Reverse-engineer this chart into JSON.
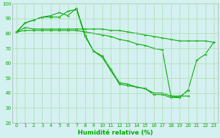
{
  "lines": [
    {
      "x": [
        0,
        1,
        2,
        3,
        4,
        5,
        6,
        7,
        8,
        9,
        10,
        11,
        12,
        13,
        14,
        15,
        16,
        17,
        18,
        19,
        20,
        21,
        22,
        23
      ],
      "y": [
        81,
        84,
        83,
        83,
        83,
        83,
        83,
        83,
        83,
        83,
        83,
        82,
        82,
        81,
        80,
        79,
        78,
        77,
        76,
        75,
        75,
        75,
        75,
        74
      ]
    },
    {
      "x": [
        0,
        1,
        2,
        3,
        4,
        5,
        6,
        7,
        8,
        9,
        10,
        11,
        12,
        13,
        14,
        15,
        16,
        17,
        18,
        19,
        20,
        21,
        22,
        23
      ],
      "y": [
        81,
        87,
        89,
        91,
        92,
        94,
        92,
        97,
        79,
        68,
        65,
        56,
        47,
        46,
        44,
        43,
        40,
        40,
        38,
        37,
        42,
        62,
        66,
        74
      ]
    },
    {
      "x": [
        0,
        1,
        2,
        3,
        4,
        5,
        6,
        7,
        8,
        9,
        10,
        11,
        12,
        13,
        14,
        15,
        16,
        17,
        18,
        19,
        20
      ],
      "y": [
        81,
        87,
        89,
        91,
        91,
        91,
        95,
        96,
        78,
        68,
        64,
        55,
        46,
        45,
        44,
        43,
        39,
        39,
        37,
        37,
        42
      ]
    },
    {
      "x": [
        0,
        1,
        2,
        3,
        4,
        5,
        6,
        7,
        8,
        9,
        10,
        11,
        12,
        13,
        14,
        15,
        16,
        17,
        18,
        19,
        20
      ],
      "y": [
        81,
        82,
        82,
        82,
        82,
        82,
        82,
        82,
        81,
        80,
        79,
        78,
        76,
        75,
        73,
        72,
        70,
        69,
        38,
        38,
        38
      ]
    }
  ],
  "line_color": "#00aa00",
  "bg_color": "#d4f0f0",
  "grid_color": "#aaddaa",
  "xlabel": "Humidité relative (%)",
  "xlabel_color": "#00aa00",
  "xlim": [
    -0.5,
    23.5
  ],
  "ylim": [
    20,
    100
  ],
  "yticks": [
    20,
    30,
    40,
    50,
    60,
    70,
    80,
    90,
    100
  ],
  "xticks": [
    0,
    1,
    2,
    3,
    4,
    5,
    6,
    7,
    8,
    9,
    10,
    11,
    12,
    13,
    14,
    15,
    16,
    17,
    18,
    19,
    20,
    21,
    22,
    23
  ],
  "xlabel_fontsize": 6.5,
  "tick_fontsize": 5.0,
  "marker_size": 2.0,
  "line_width": 0.8
}
